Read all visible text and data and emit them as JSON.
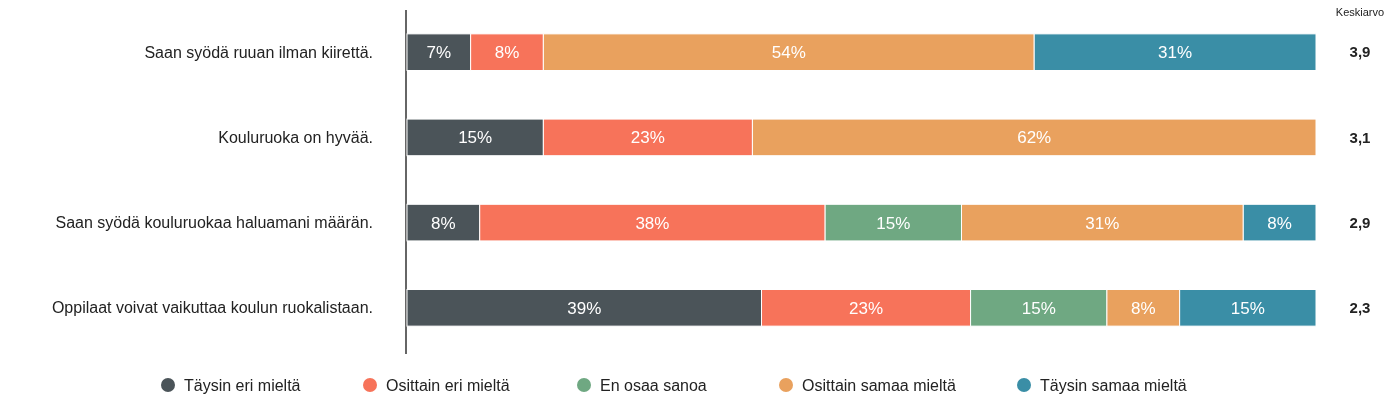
{
  "chart_data": {
    "type": "bar",
    "orientation": "horizontal",
    "stacked": true,
    "categories": [
      "Saan syödä ruuan ilman kiirettä.",
      "Kouluruoka on hyvää.",
      "Saan syödä kouluruokaa haluamani määrän.",
      "Oppilaat voivat vaikuttaa koulun ruokalistaan."
    ],
    "series": [
      {
        "name": "Täysin eri mieltä",
        "color": "#4b5459",
        "values": [
          7,
          15,
          8,
          39
        ],
        "value_labels": [
          "7%",
          "15%",
          "8%",
          "39%"
        ]
      },
      {
        "name": "Osittain eri mieltä",
        "color": "#f7735a",
        "values": [
          8,
          23,
          38,
          23
        ],
        "value_labels": [
          "8%",
          "23%",
          "38%",
          "23%"
        ]
      },
      {
        "name": "En osaa sanoa",
        "color": "#6fa882",
        "values": [
          0,
          0,
          15,
          15
        ],
        "value_labels": [
          null,
          null,
          "15%",
          "15%"
        ]
      },
      {
        "name": "Osittain samaa mieltä",
        "color": "#e9a15e",
        "values": [
          54,
          62,
          31,
          8
        ],
        "value_labels": [
          "54%",
          "62%",
          "31%",
          "8%"
        ]
      },
      {
        "name": "Täysin samaa mieltä",
        "color": "#3a8ea6",
        "values": [
          31,
          0,
          8,
          15
        ],
        "value_labels": [
          "31%",
          null,
          "8%",
          "15%"
        ]
      }
    ],
    "xlim": [
      0,
      100
    ],
    "tick_labels": "y",
    "legend": "bottom",
    "annotations": [
      "Keskiarvo",
      "3,9",
      "3,1",
      "2,9",
      "2,3"
    ]
  }
}
